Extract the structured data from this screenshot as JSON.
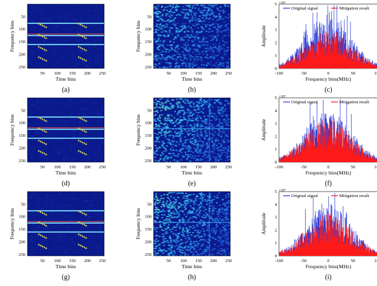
{
  "panels": [
    {
      "label": "(a)",
      "kind": "tf_clean",
      "xlabel": "Time bins",
      "ylabel": "Frequency bins",
      "xticks": [
        "50",
        "100",
        "150",
        "200",
        "250"
      ],
      "yticks": [
        "50",
        "100",
        "150",
        "200",
        "250"
      ]
    },
    {
      "label": "(b)",
      "kind": "tf_noise_b",
      "xlabel": "Time bins",
      "ylabel": "Frequency bins",
      "xticks": [
        "50",
        "100",
        "150",
        "200",
        "250"
      ],
      "yticks": [
        "50",
        "100",
        "150",
        "200",
        "250"
      ]
    },
    {
      "label": "(c)",
      "kind": "spectrum",
      "xlabel": "Frequency bins(MHz)",
      "ylabel": "Amplitude",
      "xticks": [
        "-100",
        "-50",
        "0",
        "50",
        "100"
      ],
      "yticks": [
        "0",
        "1",
        "2",
        "3",
        "4",
        "5"
      ],
      "exponent": "×10³",
      "legend": [
        "Original signal",
        "Mitigation result"
      ]
    },
    {
      "label": "(d)",
      "kind": "tf_clean",
      "xlabel": "Time bins",
      "ylabel": "Frequency bins",
      "xticks": [
        "50",
        "100",
        "150",
        "200",
        "250"
      ],
      "yticks": [
        "50",
        "100",
        "150",
        "200",
        "250"
      ]
    },
    {
      "label": "(e)",
      "kind": "tf_noise_e",
      "xlabel": "Time bins",
      "ylabel": "Frequency bins",
      "xticks": [
        "50",
        "100",
        "150",
        "200",
        "250"
      ],
      "yticks": [
        "50",
        "100",
        "150",
        "200",
        "250"
      ]
    },
    {
      "label": "(f)",
      "kind": "spectrum",
      "xlabel": "Frequency bins(MHz)",
      "ylabel": "Amplitude",
      "xticks": [
        "-100",
        "-50",
        "0",
        "50",
        "100"
      ],
      "yticks": [
        "0",
        "1",
        "2",
        "3",
        "4",
        "5"
      ],
      "exponent": "×10³",
      "legend": [
        "Original signal",
        "Mitigation result"
      ]
    },
    {
      "label": "(g)",
      "kind": "tf_clean",
      "xlabel": "Time bins",
      "ylabel": "Frequency bins",
      "xticks": [
        "50",
        "100",
        "150",
        "200",
        "250"
      ],
      "yticks": [
        "50",
        "100",
        "150",
        "200",
        "250"
      ]
    },
    {
      "label": "(h)",
      "kind": "tf_noise_h",
      "xlabel": "Time bins",
      "ylabel": "Frequency bins",
      "xticks": [
        "50",
        "100",
        "150",
        "200",
        "250"
      ],
      "yticks": [
        "50",
        "100",
        "150",
        "200",
        "250"
      ]
    },
    {
      "label": "(i)",
      "kind": "spectrum",
      "xlabel": "Frequency bins(MHz)",
      "ylabel": "Amplitude",
      "xticks": [
        "-100",
        "-50",
        "0",
        "50",
        "100"
      ],
      "yticks": [
        "0",
        "1",
        "2",
        "3",
        "4",
        "5"
      ],
      "exponent": "×10³",
      "legend": [
        "Original signal",
        "Mitigation result"
      ]
    }
  ],
  "colors": {
    "map_bg": "#0a1a8c",
    "line_cyan": "#7fe6ff",
    "line_red": "#e8564a",
    "chirp": "#d8d060",
    "spec_blue": "#2a3cd8",
    "spec_red": "#ff1a1a"
  }
}
